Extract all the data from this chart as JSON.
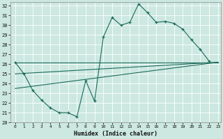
{
  "xlabel": "Humidex (Indice chaleur)",
  "bg_color": "#cce8e0",
  "grid_color": "#ffffff",
  "line_color": "#1a6b5a",
  "xlim": [
    -0.5,
    23.3
  ],
  "ylim": [
    20,
    32.4
  ],
  "xticks": [
    0,
    1,
    2,
    3,
    4,
    5,
    6,
    7,
    8,
    9,
    10,
    11,
    12,
    13,
    14,
    15,
    16,
    17,
    18,
    19,
    20,
    21,
    22,
    23
  ],
  "yticks": [
    20,
    21,
    22,
    23,
    24,
    25,
    26,
    27,
    28,
    29,
    30,
    31,
    32
  ],
  "zigzag_x": [
    0,
    1,
    2,
    3,
    4,
    5,
    6,
    7,
    8,
    9,
    10,
    11,
    12,
    13,
    14,
    15,
    16,
    17,
    18,
    19,
    20,
    21,
    22
  ],
  "zigzag_y": [
    26.2,
    25.0,
    23.3,
    22.3,
    21.5,
    21.0,
    21.0,
    20.6,
    24.3,
    22.2,
    28.8,
    30.8,
    30.0,
    30.3,
    32.2,
    31.3,
    30.3,
    30.4,
    30.2,
    29.6,
    28.5,
    27.5,
    26.3
  ],
  "line1_x": [
    0,
    23
  ],
  "line1_y": [
    26.2,
    26.2
  ],
  "line2_x": [
    0,
    23
  ],
  "line2_y": [
    26.2,
    26.2
  ],
  "ref_lines": [
    {
      "x": [
        0,
        23
      ],
      "y": [
        26.2,
        26.2
      ]
    },
    {
      "x": [
        0,
        23
      ],
      "y": [
        24.8,
        26.2
      ]
    },
    {
      "x": [
        0,
        23
      ],
      "y": [
        23.5,
        26.2
      ]
    }
  ]
}
